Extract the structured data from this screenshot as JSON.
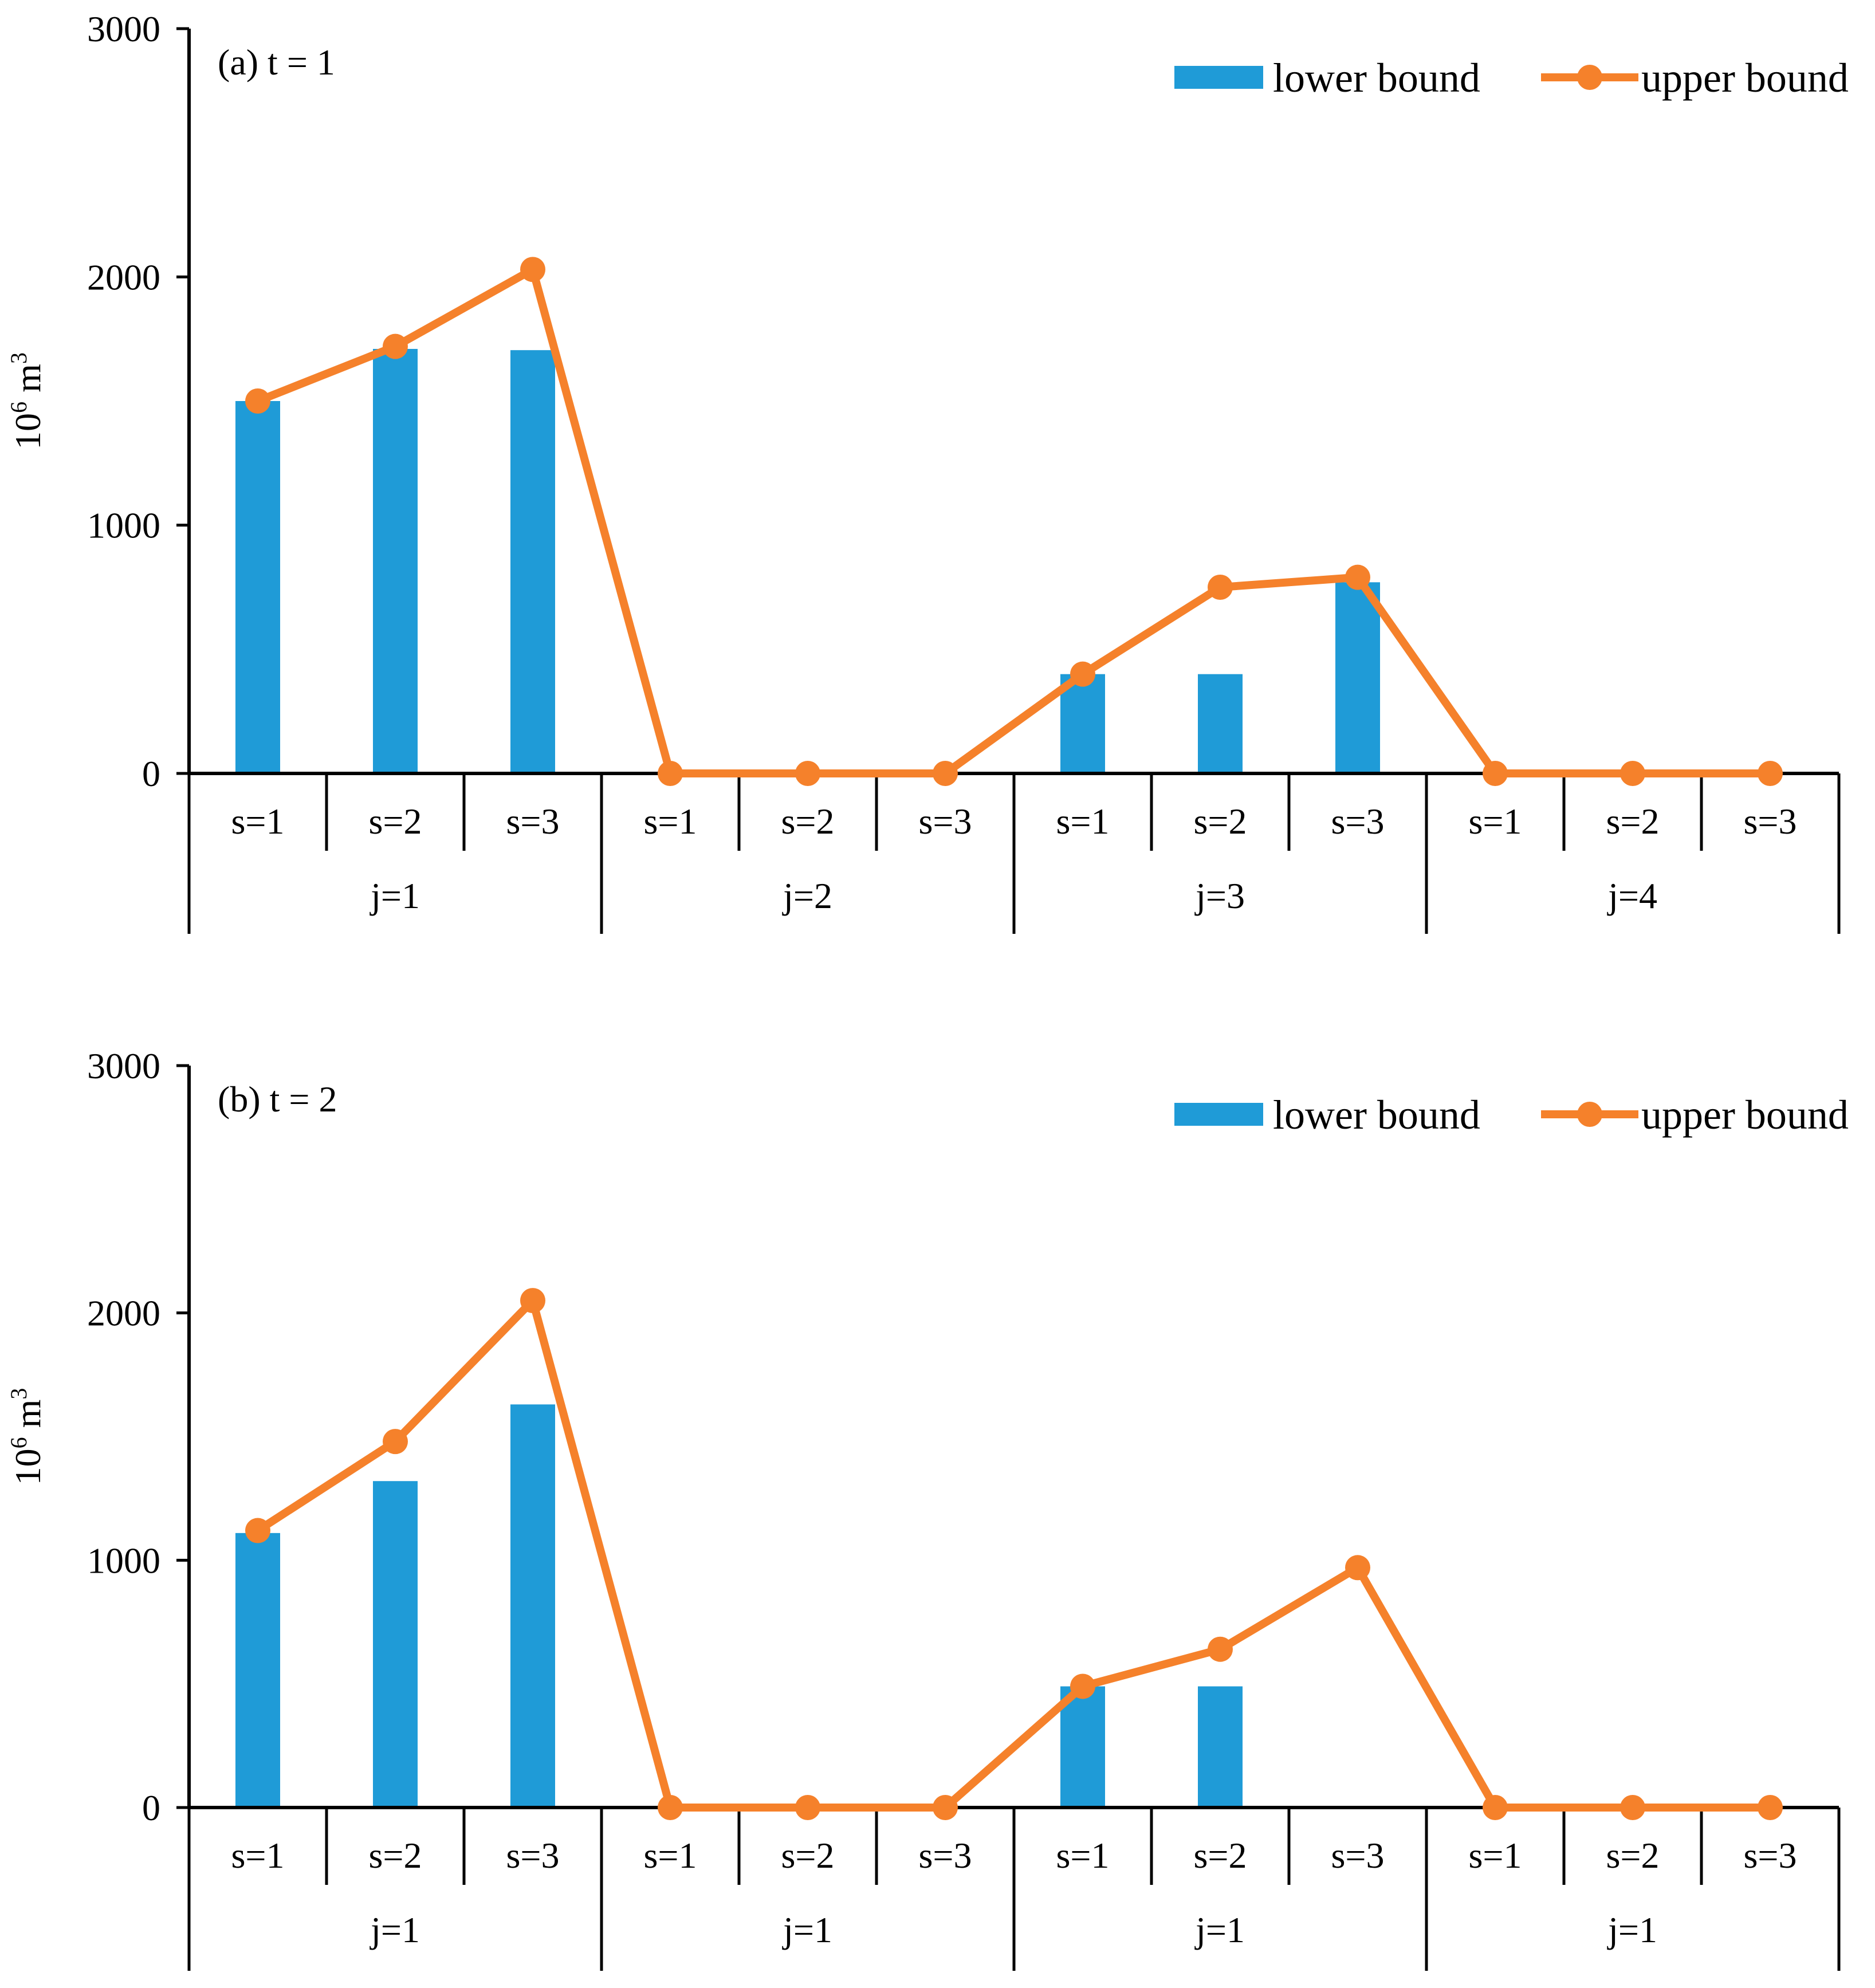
{
  "colors": {
    "lower": "#1F9BD7",
    "upper": "#F5812B",
    "axis": "#000000"
  },
  "chart_data": [
    {
      "type": "bar",
      "title": "(a) t = 1",
      "ylabel": "10",
      "ylabel_sup": "6",
      "ylabel_unit": "m",
      "ylabel_unit_sup": "3",
      "ylim": [
        0,
        3000
      ],
      "yticks": [
        "0",
        "1000",
        "2000",
        "3000"
      ],
      "ytick_values": [
        0,
        1000,
        2000,
        3000
      ],
      "categories": [
        "s=1",
        "s=2",
        "s=3",
        "s=1",
        "s=2",
        "s=3",
        "s=1",
        "s=2",
        "s=3",
        "s=1",
        "s=2",
        "s=3"
      ],
      "groups": [
        "j=1",
        "j=2",
        "j=3",
        "j=4"
      ],
      "legend": [
        "lower bound",
        "upper bound"
      ],
      "legend_position": "top-right",
      "series": [
        {
          "name": "lower bound",
          "kind": "bar",
          "values": [
            1500,
            1710,
            1705,
            0,
            0,
            0,
            400,
            400,
            770,
            0,
            0,
            0
          ]
        },
        {
          "name": "upper bound",
          "kind": "line",
          "values": [
            1500,
            1720,
            2030,
            0,
            0,
            0,
            400,
            750,
            790,
            0,
            0,
            0
          ]
        }
      ]
    },
    {
      "type": "bar",
      "title": "(b) t = 2",
      "ylabel": "10",
      "ylabel_sup": "6",
      "ylabel_unit": "m",
      "ylabel_unit_sup": "3",
      "ylim": [
        0,
        3000
      ],
      "yticks": [
        "0",
        "1000",
        "2000",
        "3000"
      ],
      "ytick_values": [
        0,
        1000,
        2000,
        3000
      ],
      "categories": [
        "s=1",
        "s=2",
        "s=3",
        "s=1",
        "s=2",
        "s=3",
        "s=1",
        "s=2",
        "s=3",
        "s=1",
        "s=2",
        "s=3"
      ],
      "groups": [
        "j=1",
        "j=1",
        "j=1",
        "j=1"
      ],
      "legend": [
        "lower bound",
        "upper bound"
      ],
      "legend_position": "top-right",
      "series": [
        {
          "name": "lower bound",
          "kind": "bar",
          "values": [
            1110,
            1320,
            1630,
            0,
            0,
            0,
            490,
            490,
            0,
            0,
            0,
            0
          ]
        },
        {
          "name": "upper bound",
          "kind": "line",
          "values": [
            1120,
            1480,
            2050,
            0,
            0,
            0,
            490,
            640,
            970,
            0,
            0,
            0
          ]
        }
      ]
    }
  ]
}
